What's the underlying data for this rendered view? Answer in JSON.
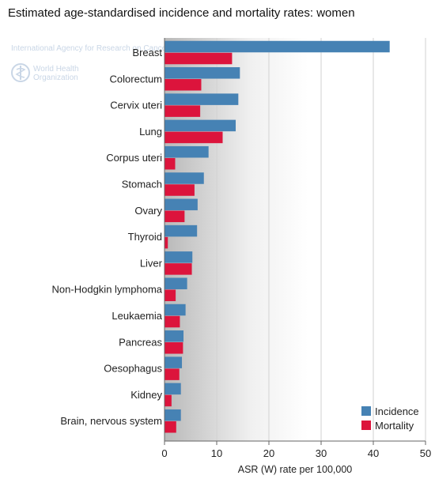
{
  "chart_data": {
    "type": "bar",
    "orientation": "horizontal",
    "title": "Estimated age-standardised incidence and mortality rates: women",
    "xlabel": "ASR (W) rate per 100,000",
    "ylabel": "",
    "xlim": [
      0,
      50
    ],
    "xticks": [
      0,
      10,
      20,
      30,
      40,
      50
    ],
    "grid": true,
    "legend_position": "bottom-right",
    "categories": [
      "Breast",
      "Colorectum",
      "Cervix uteri",
      "Lung",
      "Corpus uteri",
      "Stomach",
      "Ovary",
      "Thyroid",
      "Liver",
      "Non-Hodgkin lymphoma",
      "Leukaemia",
      "Pancreas",
      "Oesophagus",
      "Kidney",
      "Brain, nervous system"
    ],
    "series": [
      {
        "name": "Incidence",
        "color": "#4682b4",
        "values": [
          43.1,
          14.4,
          14.1,
          13.6,
          8.4,
          7.5,
          6.3,
          6.2,
          5.3,
          4.3,
          4.0,
          3.6,
          3.3,
          3.1,
          3.1
        ]
      },
      {
        "name": "Mortality",
        "color": "#dc143c",
        "values": [
          12.9,
          7.0,
          6.8,
          11.1,
          2.0,
          5.7,
          3.8,
          0.6,
          5.2,
          2.1,
          2.9,
          3.5,
          2.8,
          1.3,
          2.2
        ]
      }
    ]
  },
  "watermark": {
    "line1": "International Agency for Research on Cancer",
    "org_line1": "World Health",
    "org_line2": "Organization",
    "icon": "who-emblem-icon"
  }
}
